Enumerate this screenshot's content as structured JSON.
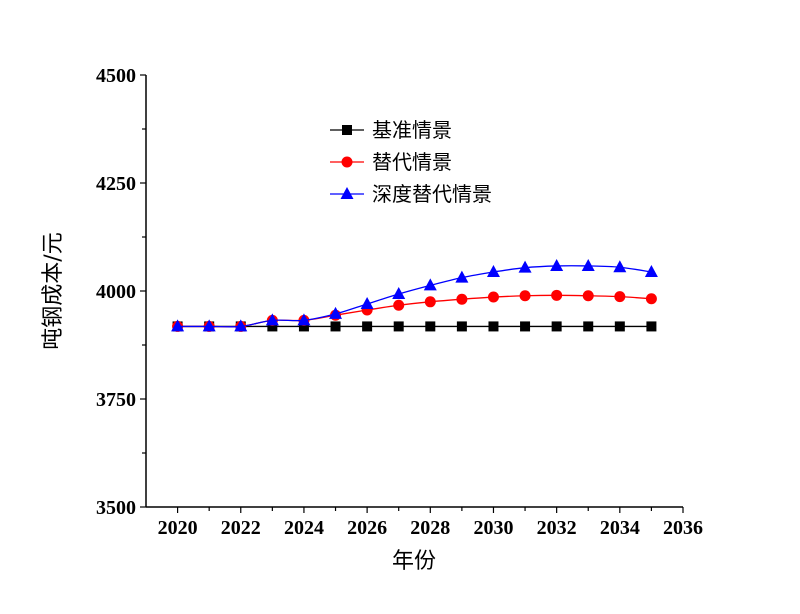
{
  "chart_data": {
    "type": "line",
    "xlabel": "年份",
    "ylabel": "吨钢成本/元",
    "xlim": [
      2019,
      2036
    ],
    "ylim": [
      3500,
      4500
    ],
    "x_ticks": [
      2020,
      2022,
      2024,
      2026,
      2028,
      2030,
      2032,
      2034,
      2036
    ],
    "y_ticks": [
      3500,
      3750,
      4000,
      4250,
      4500
    ],
    "legend_position": "top-center",
    "grid": false,
    "x": [
      2020,
      2021,
      2022,
      2023,
      2024,
      2025,
      2026,
      2027,
      2028,
      2029,
      2030,
      2031,
      2032,
      2033,
      2034,
      2035
    ],
    "series": [
      {
        "name": "基准情景",
        "color": "#000000",
        "marker": "square",
        "values": [
          3918,
          3918,
          3918,
          3918,
          3918,
          3918,
          3918,
          3918,
          3918,
          3918,
          3918,
          3918,
          3918,
          3918,
          3918,
          3918
        ]
      },
      {
        "name": "替代情景",
        "color": "#ff0000",
        "marker": "circle",
        "values": [
          3918,
          3918,
          3918,
          3932,
          3932,
          3944,
          3956,
          3967,
          3975,
          3981,
          3986,
          3989,
          3990,
          3989,
          3987,
          3982
        ]
      },
      {
        "name": "深度替代情景",
        "color": "#0000ff",
        "marker": "triangle",
        "values": [
          3918,
          3918,
          3918,
          3932,
          3932,
          3947,
          3970,
          3993,
          4013,
          4031,
          4044,
          4054,
          4058,
          4058,
          4055,
          4044
        ]
      }
    ]
  }
}
